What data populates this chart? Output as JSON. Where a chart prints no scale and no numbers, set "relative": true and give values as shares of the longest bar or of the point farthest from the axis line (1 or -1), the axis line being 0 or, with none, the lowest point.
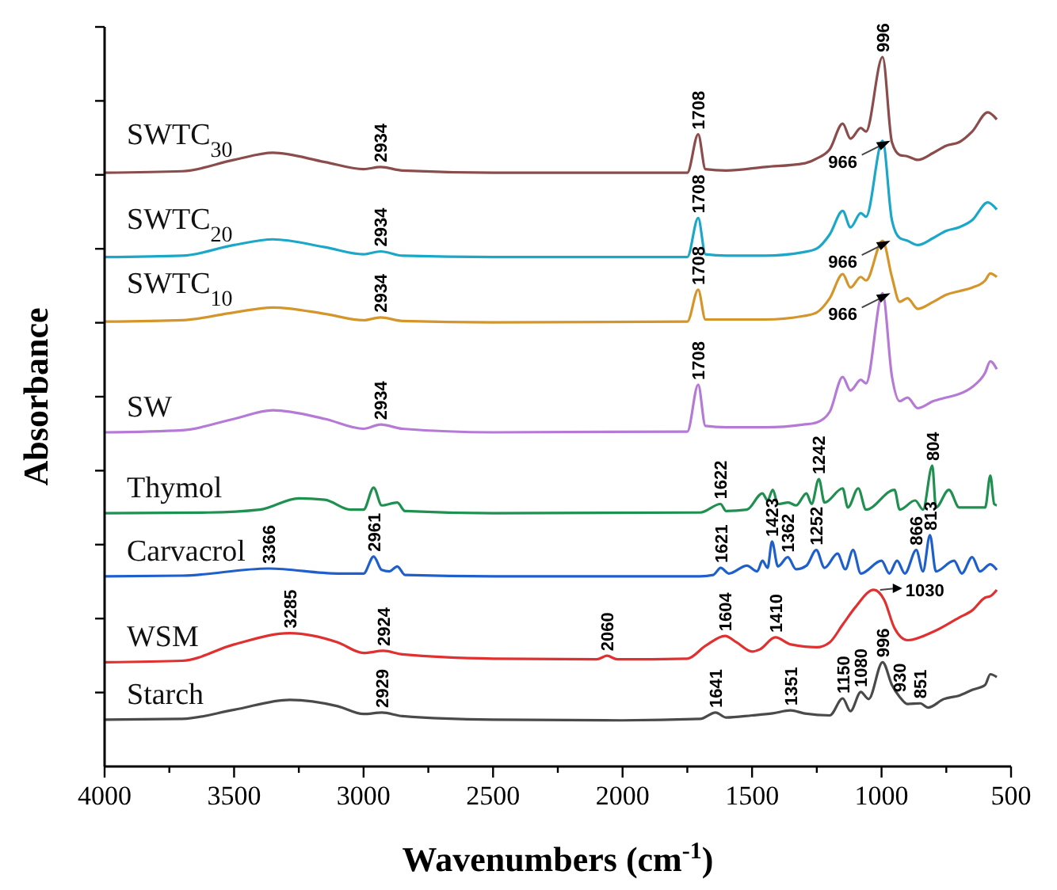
{
  "chart_data": {
    "type": "line",
    "relative": true,
    "xlabel": "Wavenumbers (cm$^{-1}$)",
    "ylabel": "Absorbance",
    "xlim": [
      4000,
      500
    ],
    "xticks": [
      4000,
      {
        "value": 3750,
        "label": null
      },
      3500,
      {
        "value": 3250,
        "label": null
      },
      3000,
      {
        "value": 2750,
        "label": null
      },
      2500,
      {
        "value": 2250,
        "label": null
      },
      2000,
      {
        "value": 1750,
        "label": null
      },
      1500,
      {
        "value": 1250,
        "label": null
      },
      1000,
      {
        "value": 750,
        "label": null
      },
      500
    ],
    "legend": false,
    "grid": false,
    "series": [
      {
        "name": "Starch",
        "color": "#4a4a4a",
        "x": [
          4000,
          3700,
          3500,
          3285,
          3100,
          3000,
          2929,
          2850,
          2500,
          2000,
          1700,
          1641,
          1600,
          1500,
          1420,
          1351,
          1300,
          1200,
          1150,
          1120,
          1080,
          1050,
          996,
          960,
          930,
          900,
          851,
          820,
          760,
          700,
          650,
          600,
          580,
          555
        ],
        "values": [
          0.066,
          0.067,
          0.08,
          0.094,
          0.085,
          0.074,
          0.076,
          0.071,
          0.066,
          0.065,
          0.067,
          0.076,
          0.069,
          0.072,
          0.075,
          0.079,
          0.075,
          0.072,
          0.096,
          0.078,
          0.105,
          0.095,
          0.147,
          0.115,
          0.098,
          0.088,
          0.089,
          0.083,
          0.095,
          0.1,
          0.108,
          0.115,
          0.13,
          0.126
        ]
      },
      {
        "name": "WSM",
        "color": "#e0302f",
        "x": [
          4000,
          3700,
          3500,
          3285,
          3100,
          3000,
          2924,
          2850,
          2500,
          2100,
          2060,
          2020,
          1750,
          1680,
          1604,
          1560,
          1500,
          1470,
          1410,
          1350,
          1250,
          1200,
          1150,
          1100,
          1030,
          990,
          950,
          900,
          800,
          700,
          650,
          600,
          580,
          555
        ],
        "values": [
          0.147,
          0.149,
          0.172,
          0.188,
          0.175,
          0.16,
          0.163,
          0.158,
          0.152,
          0.151,
          0.156,
          0.151,
          0.152,
          0.17,
          0.184,
          0.175,
          0.162,
          0.165,
          0.182,
          0.172,
          0.168,
          0.175,
          0.2,
          0.225,
          0.249,
          0.235,
          0.195,
          0.178,
          0.19,
          0.21,
          0.22,
          0.238,
          0.24,
          0.249
        ]
      },
      {
        "name": "Carvacrol",
        "color": "#1f5fcc",
        "x": [
          4000,
          3700,
          3366,
          3100,
          3000,
          2961,
          2930,
          2900,
          2870,
          2840,
          2500,
          1700,
          1650,
          1621,
          1590,
          1520,
          1480,
          1460,
          1440,
          1423,
          1400,
          1362,
          1330,
          1290,
          1252,
          1220,
          1170,
          1140,
          1110,
          1080,
          1000,
          970,
          940,
          910,
          866,
          840,
          813,
          790,
          720,
          690,
          650,
          620,
          580,
          555
        ],
        "values": [
          0.268,
          0.269,
          0.279,
          0.272,
          0.272,
          0.296,
          0.277,
          0.275,
          0.282,
          0.27,
          0.268,
          0.268,
          0.27,
          0.28,
          0.272,
          0.283,
          0.275,
          0.29,
          0.28,
          0.317,
          0.282,
          0.295,
          0.278,
          0.283,
          0.305,
          0.28,
          0.3,
          0.278,
          0.305,
          0.272,
          0.29,
          0.272,
          0.29,
          0.272,
          0.305,
          0.275,
          0.326,
          0.275,
          0.29,
          0.272,
          0.295,
          0.275,
          0.285,
          0.277
        ]
      },
      {
        "name": "Thymol",
        "color": "#1f9050",
        "x": [
          4000,
          3600,
          3400,
          3250,
          3150,
          3050,
          3000,
          2961,
          2930,
          2870,
          2840,
          2500,
          1700,
          1622,
          1600,
          1520,
          1460,
          1440,
          1420,
          1400,
          1360,
          1330,
          1290,
          1270,
          1242,
          1220,
          1150,
          1130,
          1090,
          1060,
          950,
          930,
          870,
          840,
          804,
          790,
          740,
          700,
          600,
          580,
          565,
          555
        ],
        "values": [
          0.357,
          0.358,
          0.362,
          0.378,
          0.376,
          0.362,
          0.362,
          0.393,
          0.368,
          0.372,
          0.36,
          0.357,
          0.358,
          0.37,
          0.36,
          0.362,
          0.385,
          0.375,
          0.39,
          0.37,
          0.372,
          0.368,
          0.385,
          0.37,
          0.405,
          0.372,
          0.392,
          0.365,
          0.392,
          0.362,
          0.39,
          0.362,
          0.375,
          0.362,
          0.424,
          0.365,
          0.39,
          0.365,
          0.365,
          0.41,
          0.37,
          0.368
        ]
      },
      {
        "name": "SW",
        "color": "#b57ad6",
        "x": [
          4000,
          3700,
          3500,
          3350,
          3150,
          3000,
          2934,
          2850,
          2500,
          1750,
          1708,
          1680,
          1600,
          1450,
          1300,
          1250,
          1200,
          1150,
          1120,
          1080,
          1060,
          996,
          960,
          930,
          900,
          860,
          800,
          750,
          700,
          650,
          600,
          580,
          555
        ],
        "values": [
          0.471,
          0.474,
          0.49,
          0.502,
          0.49,
          0.476,
          0.482,
          0.476,
          0.471,
          0.472,
          0.538,
          0.48,
          0.478,
          0.478,
          0.482,
          0.485,
          0.5,
          0.549,
          0.53,
          0.545,
          0.54,
          0.667,
          0.55,
          0.515,
          0.52,
          0.505,
          0.515,
          0.52,
          0.525,
          0.535,
          0.555,
          0.571,
          0.56
        ]
      },
      {
        "name": "SWTC$_{10}$",
        "color": "#d4952a",
        "x": [
          4000,
          3700,
          3500,
          3350,
          3150,
          3000,
          2934,
          2850,
          2500,
          1750,
          1708,
          1680,
          1600,
          1450,
          1300,
          1250,
          1200,
          1150,
          1120,
          1080,
          1060,
          996,
          960,
          930,
          900,
          860,
          800,
          750,
          700,
          650,
          600,
          580,
          555
        ],
        "values": [
          0.627,
          0.629,
          0.64,
          0.647,
          0.638,
          0.629,
          0.633,
          0.628,
          0.626,
          0.627,
          0.672,
          0.63,
          0.63,
          0.63,
          0.635,
          0.64,
          0.66,
          0.694,
          0.675,
          0.69,
          0.685,
          0.741,
          0.69,
          0.655,
          0.66,
          0.645,
          0.655,
          0.665,
          0.67,
          0.675,
          0.685,
          0.695,
          0.69
        ]
      },
      {
        "name": "SWTC$_{20}$",
        "color": "#1ba8c8",
        "x": [
          4000,
          3700,
          3500,
          3350,
          3150,
          3000,
          2934,
          2850,
          2500,
          1750,
          1708,
          1680,
          1600,
          1450,
          1300,
          1250,
          1200,
          1150,
          1120,
          1080,
          1060,
          996,
          960,
          930,
          900,
          860,
          800,
          750,
          700,
          650,
          590,
          555
        ],
        "values": [
          0.718,
          0.72,
          0.735,
          0.743,
          0.732,
          0.722,
          0.726,
          0.72,
          0.718,
          0.718,
          0.773,
          0.722,
          0.72,
          0.72,
          0.725,
          0.73,
          0.75,
          0.783,
          0.76,
          0.78,
          0.775,
          0.882,
          0.77,
          0.745,
          0.741,
          0.735,
          0.745,
          0.755,
          0.76,
          0.77,
          0.795,
          0.785
        ]
      },
      {
        "name": "SWTC$_{30}$",
        "color": "#8b4c4c",
        "x": [
          4000,
          3700,
          3500,
          3350,
          3150,
          3000,
          2934,
          2850,
          2500,
          1750,
          1708,
          1680,
          1600,
          1450,
          1300,
          1250,
          1200,
          1150,
          1120,
          1080,
          1060,
          996,
          960,
          930,
          900,
          860,
          800,
          750,
          700,
          650,
          590,
          555
        ],
        "values": [
          0.837,
          0.839,
          0.855,
          0.865,
          0.852,
          0.842,
          0.845,
          0.84,
          0.837,
          0.837,
          0.891,
          0.842,
          0.84,
          0.845,
          0.85,
          0.857,
          0.87,
          0.906,
          0.885,
          0.9,
          0.895,
          1.0,
          0.88,
          0.862,
          0.86,
          0.855,
          0.865,
          0.875,
          0.88,
          0.895,
          0.922,
          0.912
        ]
      }
    ],
    "annotations": [
      {
        "text": "2929",
        "x": 2929,
        "y": 0.076
      },
      {
        "text": "1641",
        "x": 1641,
        "y": 0.076
      },
      {
        "text": "1351",
        "x": 1351,
        "y": 0.079
      },
      {
        "text": "1150",
        "x": 1150,
        "y": 0.096
      },
      {
        "text": "1080",
        "x": 1080,
        "y": 0.105
      },
      {
        "text": "996",
        "x": 996,
        "y": 0.147
      },
      {
        "text": "930",
        "x": 930,
        "y": 0.098
      },
      {
        "text": "851",
        "x": 851,
        "y": 0.089
      },
      {
        "text": "3285",
        "x": 3285,
        "y": 0.188
      },
      {
        "text": "2924",
        "x": 2924,
        "y": 0.163
      },
      {
        "text": "2060",
        "x": 2060,
        "y": 0.156
      },
      {
        "text": "1604",
        "x": 1604,
        "y": 0.184
      },
      {
        "text": "1410",
        "x": 1410,
        "y": 0.182
      },
      {
        "text": "1030",
        "x": 1030,
        "y": 0.249
      },
      {
        "text": "3366",
        "x": 3366,
        "y": 0.279
      },
      {
        "text": "2961",
        "x": 2961,
        "y": 0.296
      },
      {
        "text": "1621",
        "x": 1621,
        "y": 0.28
      },
      {
        "text": "1423",
        "x": 1423,
        "y": 0.317
      },
      {
        "text": "1362",
        "x": 1362,
        "y": 0.295
      },
      {
        "text": "1252",
        "x": 1252,
        "y": 0.305
      },
      {
        "text": "866",
        "x": 866,
        "y": 0.305
      },
      {
        "text": "813",
        "x": 813,
        "y": 0.326
      },
      {
        "text": "1622",
        "x": 1622,
        "y": 0.37
      },
      {
        "text": "1242",
        "x": 1242,
        "y": 0.405
      },
      {
        "text": "804",
        "x": 804,
        "y": 0.424
      },
      {
        "text": "2934",
        "x": 2934,
        "y": 0.482
      },
      {
        "text": "1708",
        "x": 1708,
        "y": 0.538
      },
      {
        "text": "966",
        "x": 966,
        "y": 0.667
      },
      {
        "text": "2934",
        "x": 2934,
        "y": 0.633
      },
      {
        "text": "1708",
        "x": 1708,
        "y": 0.672
      },
      {
        "text": "966",
        "x": 966,
        "y": 0.741
      },
      {
        "text": "2934",
        "x": 2934,
        "y": 0.726
      },
      {
        "text": "1708",
        "x": 1708,
        "y": 0.773
      },
      {
        "text": "966",
        "x": 966,
        "y": 0.882
      },
      {
        "text": "2934",
        "x": 2934,
        "y": 0.845
      },
      {
        "text": "1708",
        "x": 1708,
        "y": 0.891
      },
      {
        "text": "996",
        "x": 996,
        "y": 1.0
      }
    ]
  }
}
